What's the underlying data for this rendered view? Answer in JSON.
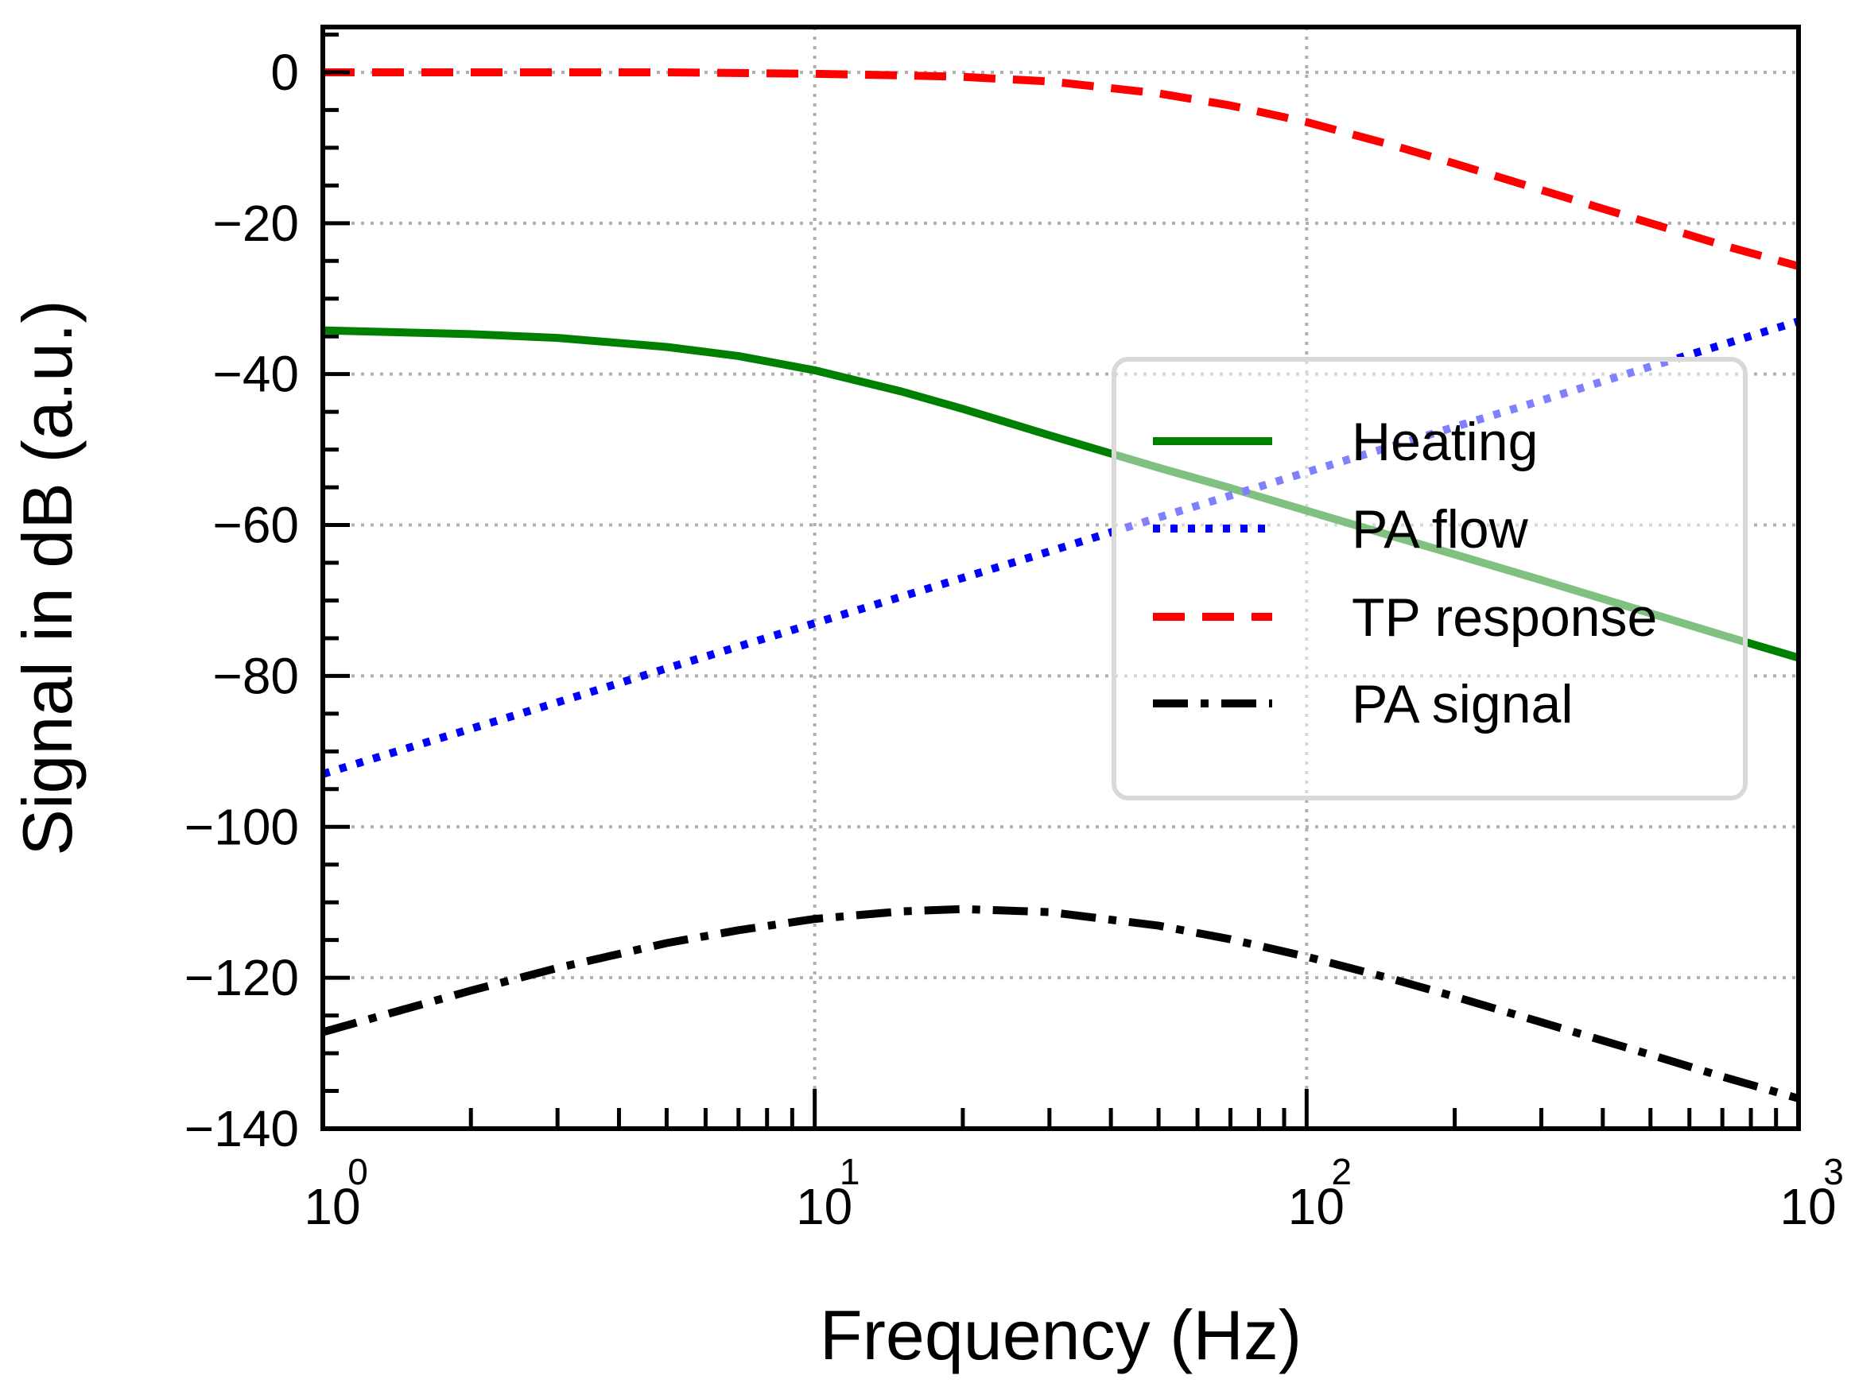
{
  "chart_data": {
    "type": "line",
    "title": "",
    "xlabel": "Frequency (Hz)",
    "ylabel": "Signal in dB (a.u.)",
    "xscale": "log",
    "xlim": [
      1,
      1000
    ],
    "ylim": [
      -140,
      6
    ],
    "grid": true,
    "legend_position": "center-right",
    "x_ticks": [
      {
        "base": "10",
        "exp": "0"
      },
      {
        "base": "10",
        "exp": "1"
      },
      {
        "base": "10",
        "exp": "2"
      },
      {
        "base": "10",
        "exp": "3"
      }
    ],
    "y_ticks": [
      0,
      -20,
      -40,
      -60,
      -80,
      -100,
      -120,
      -140
    ],
    "y_tick_labels": [
      "0",
      "−20",
      "−40",
      "−60",
      "−80",
      "−100",
      "−120",
      "−140"
    ],
    "x": [
      1,
      2,
      3,
      5,
      7,
      10,
      15,
      20,
      30,
      50,
      70,
      100,
      150,
      200,
      300,
      500,
      700,
      1000
    ],
    "series": [
      {
        "name": "Heating",
        "color": "#008000",
        "style": "solid",
        "values": [
          -34.2,
          -34.7,
          -35.2,
          -36.4,
          -37.6,
          -39.5,
          -42.3,
          -44.6,
          -48.1,
          -52.4,
          -55.1,
          -58.1,
          -61.5,
          -63.9,
          -67.3,
          -71.7,
          -74.6,
          -77.6
        ]
      },
      {
        "name": "PA flow",
        "color": "#0000ff",
        "style": "dotted",
        "values": [
          -93.0,
          -87.0,
          -83.5,
          -79.0,
          -76.1,
          -73.0,
          -69.5,
          -67.0,
          -63.5,
          -59.0,
          -56.1,
          -53.0,
          -49.5,
          -47.0,
          -43.5,
          -39.0,
          -36.1,
          -33.0
        ]
      },
      {
        "name": "TP response",
        "color": "#ff0000",
        "style": "dashed",
        "values": [
          0.0,
          0.0,
          0.0,
          0.0,
          -0.1,
          -0.2,
          -0.4,
          -0.6,
          -1.2,
          -2.8,
          -4.4,
          -6.6,
          -9.7,
          -12.1,
          -15.6,
          -20.0,
          -22.9,
          -25.7
        ]
      },
      {
        "name": "PA signal",
        "color": "#000000",
        "style": "dashdot",
        "values": [
          -127.2,
          -121.7,
          -118.7,
          -115.4,
          -113.7,
          -112.2,
          -111.2,
          -110.9,
          -111.3,
          -113.1,
          -114.9,
          -117.2,
          -120.2,
          -122.5,
          -125.9,
          -130.2,
          -133.1,
          -136.0
        ]
      }
    ]
  }
}
